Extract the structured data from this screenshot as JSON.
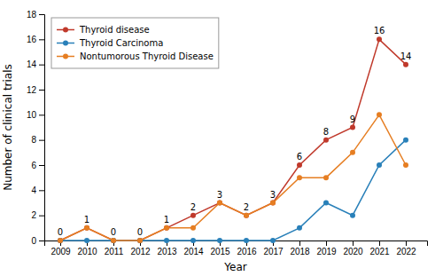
{
  "chart_data": {
    "type": "line",
    "x": [
      2009,
      2010,
      2011,
      2012,
      2013,
      2014,
      2015,
      2016,
      2017,
      2018,
      2019,
      2020,
      2021,
      2022
    ],
    "xlim": [
      2008.4,
      2022.8
    ],
    "xticks": [
      2009,
      2010,
      2011,
      2012,
      2013,
      2014,
      2015,
      2016,
      2017,
      2018,
      2019,
      2020,
      2021,
      2022
    ],
    "ylim": [
      0,
      18
    ],
    "yticks": [
      0,
      2,
      4,
      6,
      8,
      10,
      12,
      14,
      16,
      18
    ],
    "x_label": "Year",
    "y_label": "Number of clinical trials",
    "grid": false,
    "legend": "upper-left",
    "marker": "circle",
    "series": [
      {
        "name": "Thyroid disease",
        "color": "#c0392b",
        "data_labels": true,
        "values": [
          0,
          1,
          0,
          0,
          1,
          2,
          3,
          2,
          3,
          6,
          8,
          9,
          16,
          14
        ]
      },
      {
        "name": "Thyroid Carcinoma",
        "color": "#2980b9",
        "values": [
          0,
          0,
          0,
          0,
          0,
          0,
          0,
          0,
          0,
          1,
          3,
          2,
          6,
          8
        ]
      },
      {
        "name": "Nontumorous Thyroid Disease",
        "color": "#e67e22",
        "values": [
          0,
          1,
          0,
          0,
          1,
          1,
          3,
          2,
          3,
          5,
          5,
          7,
          10,
          6
        ]
      }
    ]
  }
}
